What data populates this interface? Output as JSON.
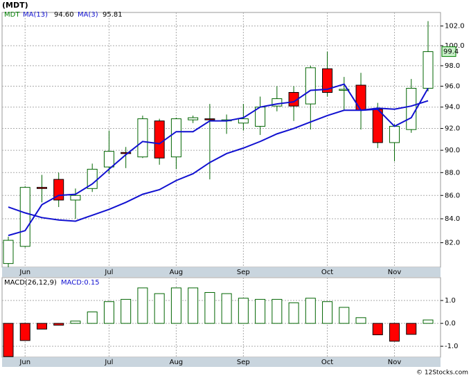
{
  "title": "(MDT)",
  "copyright": "© 12Stocks.com",
  "chart_data": [
    {
      "type": "candlestick",
      "name": "MDT",
      "log_scale": true,
      "grid": true,
      "up_color": "#006400",
      "down_color": "#ff0000",
      "categories": [
        null,
        "Jun",
        null,
        null,
        null,
        null,
        "Jul",
        null,
        null,
        null,
        "Aug",
        null,
        null,
        null,
        "Sep",
        null,
        null,
        null,
        null,
        "Oct",
        null,
        null,
        null,
        "Nov",
        null,
        null
      ],
      "open": [
        80.3,
        81.7,
        86.7,
        87.4,
        85.6,
        86.6,
        88.5,
        89.8,
        89.4,
        92.7,
        89.4,
        92.8,
        92.9,
        92.7,
        92.5,
        92.2,
        94.1,
        95.4,
        94.3,
        97.7,
        95.6,
        96.1,
        93.8,
        90.7,
        91.9,
        95.8
      ],
      "high": [
        82.5,
        86.8,
        87.8,
        88.0,
        86.6,
        88.8,
        91.8,
        90.3,
        93.2,
        92.9,
        93.0,
        93.2,
        94.3,
        93.3,
        94.3,
        95.0,
        96.0,
        96.0,
        98.0,
        99.4,
        96.9,
        97.3,
        94.4,
        92.4,
        96.7,
        102.5
      ],
      "low": [
        80.0,
        81.6,
        85.4,
        85.0,
        84.0,
        86.3,
        87.9,
        88.4,
        89.3,
        88.7,
        88.3,
        92.5,
        87.4,
        91.5,
        91.8,
        91.4,
        93.6,
        92.7,
        91.9,
        95.0,
        93.7,
        91.9,
        90.2,
        89.0,
        91.6,
        95.5
      ],
      "close": [
        82.2,
        86.7,
        86.6,
        85.6,
        86.0,
        88.3,
        89.9,
        89.7,
        92.9,
        89.3,
        92.9,
        93.0,
        92.8,
        92.8,
        92.9,
        94.0,
        94.8,
        94.1,
        97.8,
        95.4,
        95.7,
        93.7,
        90.7,
        92.2,
        95.8,
        99.4
      ],
      "series": [
        {
          "name": "MA(13)",
          "legend_value": "94.60",
          "color": "#1010d0",
          "values": [
            85.0,
            84.5,
            84.1,
            83.9,
            83.8,
            84.3,
            84.8,
            85.4,
            86.1,
            86.5,
            87.3,
            87.9,
            88.9,
            89.7,
            90.2,
            90.8,
            91.5,
            92.0,
            92.6,
            93.2,
            93.7,
            93.7,
            93.9,
            93.8,
            94.1,
            94.6
          ]
        },
        {
          "name": "MA(3)",
          "legend_value": "95.81",
          "color": "#1010d0",
          "values": [
            82.6,
            83.0,
            85.2,
            86.0,
            86.1,
            87.0,
            88.3,
            89.6,
            90.8,
            90.6,
            91.7,
            91.7,
            92.7,
            92.7,
            93.0,
            94.0,
            94.3,
            94.5,
            95.6,
            95.7,
            96.2,
            93.7,
            93.8,
            92.2,
            93.0,
            95.8
          ]
        }
      ],
      "ylim": [
        80.0,
        103.4
      ],
      "yticks": [
        {
          "value": 82,
          "label": "82.0"
        },
        {
          "value": 84,
          "label": "84.0"
        },
        {
          "value": 86,
          "label": "86.0"
        },
        {
          "value": 88,
          "label": "88.0"
        },
        {
          "value": 90,
          "label": "90.0"
        },
        {
          "value": 92,
          "label": "92.0"
        },
        {
          "value": 94,
          "label": "94.0"
        },
        {
          "value": 96,
          "label": "96.0"
        },
        {
          "value": 98,
          "label": "98.0"
        },
        {
          "value": 100,
          "label": "100.0"
        },
        {
          "value": 102,
          "label": "102.0"
        }
      ]
    },
    {
      "type": "bar",
      "name": "MACD(26,12,9)",
      "legend_value": "MACD:0.15",
      "grid": true,
      "up_color": "#006400",
      "down_color": "#ff0000",
      "categories": [
        null,
        "Jun",
        null,
        null,
        null,
        null,
        "Jul",
        null,
        null,
        null,
        "Aug",
        null,
        null,
        null,
        "Sep",
        null,
        null,
        null,
        null,
        "Oct",
        null,
        null,
        null,
        "Nov",
        null,
        null
      ],
      "values": [
        -1.45,
        -0.75,
        -0.25,
        -0.08,
        0.1,
        0.5,
        0.95,
        1.05,
        1.55,
        1.3,
        1.55,
        1.55,
        1.35,
        1.3,
        1.1,
        1.05,
        1.05,
        0.9,
        1.1,
        0.95,
        0.7,
        0.25,
        -0.5,
        -0.78,
        -0.48,
        0.15
      ],
      "ylim": [
        -1.48,
        2.0
      ],
      "yticks": [
        {
          "value": -1,
          "label": "-1.0"
        },
        {
          "value": 0,
          "label": "0.0"
        },
        {
          "value": 1,
          "label": "1.0"
        }
      ]
    }
  ]
}
